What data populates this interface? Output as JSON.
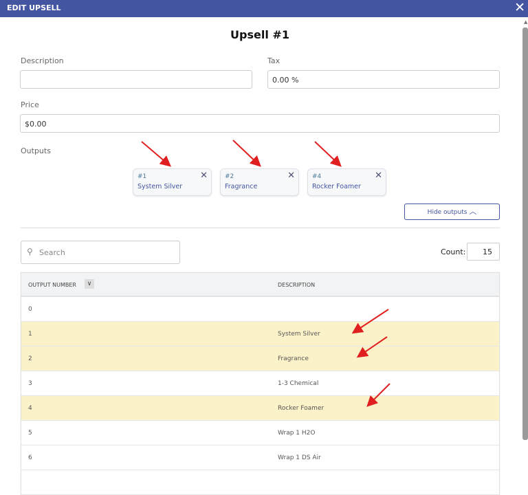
{
  "header": {
    "title": "EDIT UPSELL",
    "close": "✕"
  },
  "form": {
    "title": "Upsell #1",
    "description_label": "Description",
    "description_value": "",
    "tax_label": "Tax",
    "tax_value": "0.00 %",
    "price_label": "Price",
    "price_value": "$0.00",
    "outputs_label": "Outputs"
  },
  "outputs": [
    {
      "num": "#1",
      "name": "System Silver"
    },
    {
      "num": "#2",
      "name": "Fragrance"
    },
    {
      "num": "#4",
      "name": "Rocker Foamer"
    }
  ],
  "hide_outputs": "Hide outputs",
  "search": {
    "placeholder": "Search"
  },
  "count": {
    "label": "Count:",
    "value": "15"
  },
  "table": {
    "headers": [
      "OUTPUT NUMBER",
      "DESCRIPTION"
    ],
    "rows": [
      {
        "n": "0",
        "d": "",
        "selected": false
      },
      {
        "n": "1",
        "d": "System Silver",
        "selected": true
      },
      {
        "n": "2",
        "d": "Fragrance",
        "selected": true
      },
      {
        "n": "3",
        "d": "1-3 Chemical",
        "selected": false
      },
      {
        "n": "4",
        "d": "Rocker Foamer",
        "selected": true
      },
      {
        "n": "5",
        "d": "Wrap 1 H2O",
        "selected": false
      },
      {
        "n": "6",
        "d": "Wrap 1 DS Air",
        "selected": false
      },
      {
        "n": "",
        "d": "",
        "selected": false
      }
    ]
  },
  "colors": {
    "header": "#4354a0",
    "selected_row": "#fcf2c9",
    "annotation_arrow": "#e02020"
  }
}
